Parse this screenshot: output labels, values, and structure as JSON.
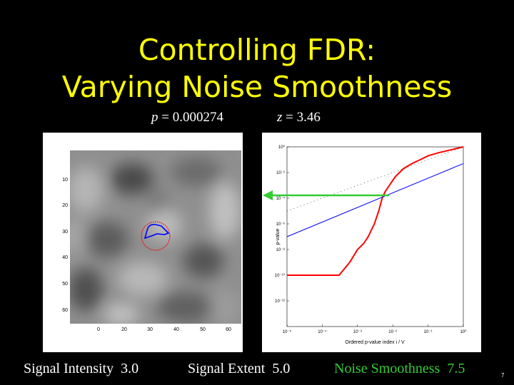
{
  "slide": {
    "title_line1": "Controlling FDR:",
    "title_line2": "Varying Noise Smoothness",
    "p_label": "p",
    "p_value": " = 0.000274",
    "z_label": "z",
    "z_value": " = 3.46",
    "number": "7"
  },
  "captions": {
    "intensity_label": "Signal Intensity",
    "intensity_value": "3.0",
    "extent_label": "Signal Extent",
    "extent_value": "5.0",
    "smoothness_label": "Noise Smoothness",
    "smoothness_value": "7.5"
  },
  "colors": {
    "title": "#ffff00",
    "highlight": "#33cc33",
    "signal_outline": "#0000ff",
    "true_region": "#ff0000"
  },
  "left_plot": {
    "x_ticks": [
      "0",
      "20",
      "30",
      "40",
      "50",
      "60"
    ],
    "y_ticks": [
      "10",
      "20",
      "30",
      "40",
      "50",
      "60"
    ]
  },
  "chart_data": {
    "type": "line",
    "xlabel": "Ordered p-value index i / V",
    "ylabel": "p-value",
    "log_x": true,
    "log_y": true,
    "x_ticks": [
      "10⁻⁵",
      "10⁻⁴",
      "10⁻³",
      "10⁻²",
      "10⁻¹",
      "10⁰"
    ],
    "y_ticks": [
      "10⁰",
      "10⁻²",
      "10⁻⁴",
      "10⁻⁶",
      "10⁻⁸",
      "10⁻¹⁰",
      "10⁻¹²"
    ],
    "xlim": [
      1e-05,
      1
    ],
    "ylim": [
      1e-14,
      1
    ],
    "threshold_p": 0.000274,
    "series": [
      {
        "color": "#ff0000",
        "x": [
          1e-05,
          3e-05,
          0.0001,
          0.0003,
          0.0006,
          0.001,
          0.0015,
          0.002,
          0.003,
          0.004,
          0.005,
          0.006,
          0.008,
          0.012,
          0.02,
          0.035,
          0.06,
          0.1,
          0.2,
          0.4,
          1
        ],
        "y": [
          1e-10,
          1e-10,
          1e-10,
          1e-10,
          1e-09,
          1e-08,
          3e-08,
          1e-07,
          1e-06,
          1e-05,
          0.0001,
          0.0003,
          0.001,
          0.005,
          0.02,
          0.05,
          0.1,
          0.2,
          0.35,
          0.55,
          1
        ]
      },
      {
        "color": "#0000ff",
        "x": [
          1e-05,
          1
        ],
        "y": [
          1e-07,
          0.05
        ]
      },
      {
        "color": "#000000",
        "x": [
          1e-05,
          1
        ],
        "y": [
          1e-05,
          1
        ]
      }
    ]
  }
}
